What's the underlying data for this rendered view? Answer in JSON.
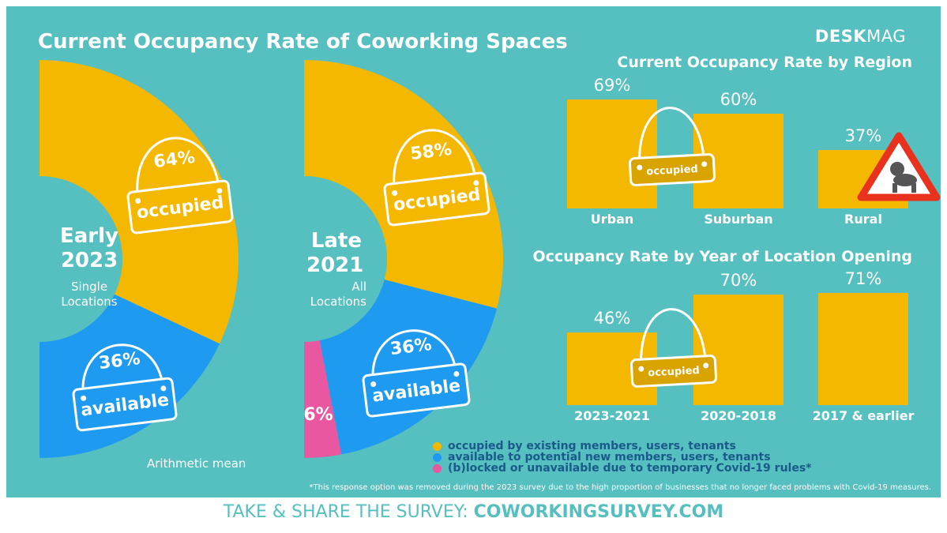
{
  "title": "Current Occupancy Rate of Coworking Spaces",
  "logo": {
    "bold": "DESK",
    "thin": "MAG"
  },
  "donuts": [
    {
      "label_big_1": "Early",
      "label_big_2": "2023",
      "label_small_1": "Single",
      "label_small_2": "Locations",
      "occupied_pct": "64%",
      "available_pct": "36%"
    },
    {
      "label_big_1": "Late",
      "label_big_2": "2021",
      "label_small_1": "All",
      "label_small_2": "Locations",
      "occupied_pct": "58%",
      "available_pct": "36%",
      "blocked_pct": "6%"
    }
  ],
  "tag_labels": {
    "occupied": "occupied",
    "available": "available"
  },
  "mean_note": "Arithmetic mean",
  "legend": [
    {
      "label": "occupied by existing members, users, tenants",
      "color": "#F5B800"
    },
    {
      "label": "available to potential new members, users, tenants",
      "color": "#1E9BF0"
    },
    {
      "label": "(b)locked or unavailable due to temporary Covid-19 rules*",
      "color": "#E8579F"
    }
  ],
  "footnote": "*This response option was removed during the 2023 survey due to the high proportion of businesses that no longer faced problems with Covid-19 measures.",
  "footer": {
    "prefix": "TAKE & SHARE THE SURVEY: ",
    "link": "COWORKINGSURVEY.COM"
  },
  "colors": {
    "teal": "#56BFBF",
    "yellow": "#F5B800",
    "blue": "#1E9BF0",
    "pink": "#E8579F",
    "sign_red": "#E8321E"
  },
  "icons": {
    "warning": "baby-warning-sign-icon",
    "tag": "hanging-sign-icon"
  },
  "chart_data": [
    {
      "type": "pie",
      "label": "Early 2023 – Single Locations",
      "categories": [
        "occupied",
        "available"
      ],
      "values": [
        64,
        36
      ],
      "unit": "%"
    },
    {
      "type": "pie",
      "label": "Late 2021 – All Locations",
      "categories": [
        "occupied",
        "available",
        "(b)locked"
      ],
      "values": [
        58,
        36,
        6
      ],
      "unit": "%"
    },
    {
      "type": "bar",
      "title": "Current Occupancy Rate by Region",
      "categories": [
        "Urban",
        "Suburban",
        "Rural"
      ],
      "values": [
        69,
        60,
        37
      ],
      "value_labels": [
        "69%",
        "60%",
        "37%"
      ],
      "ylim": [
        0,
        100
      ]
    },
    {
      "type": "bar",
      "title": "Occupancy Rate by Year of Location Opening",
      "categories": [
        "2023-2021",
        "2020-2018",
        "2017 & earlier"
      ],
      "values": [
        46,
        70,
        71
      ],
      "value_labels": [
        "46%",
        "70%",
        "71%"
      ],
      "ylim": [
        0,
        100
      ]
    }
  ]
}
